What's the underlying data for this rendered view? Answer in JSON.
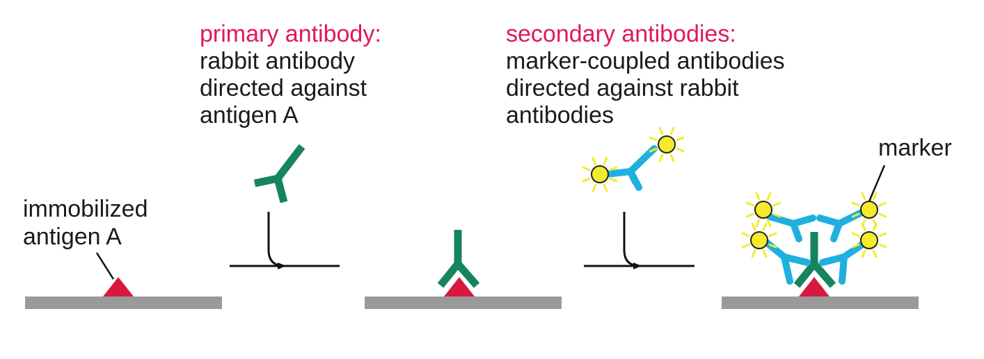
{
  "colors": {
    "surface": "#9a9a9a",
    "antigen": "#d7193f",
    "primary_antibody": "#16845f",
    "secondary_antibody": "#1fb0e0",
    "marker_fill": "#f4ec2a",
    "marker_rays": "#f4ec2a",
    "label_accent": "#e0185a",
    "text": "#1a1a1a"
  },
  "labels": {
    "immobilized": [
      "immobilized",
      "antigen A"
    ],
    "primary_title": "primary antibody:",
    "primary_desc": [
      "rabbit antibody",
      "directed against",
      "antigen A"
    ],
    "secondary_title": "secondary antibodies:",
    "secondary_desc": [
      "marker-coupled antibodies",
      "directed against rabbit",
      "antibodies"
    ],
    "marker": "marker"
  }
}
